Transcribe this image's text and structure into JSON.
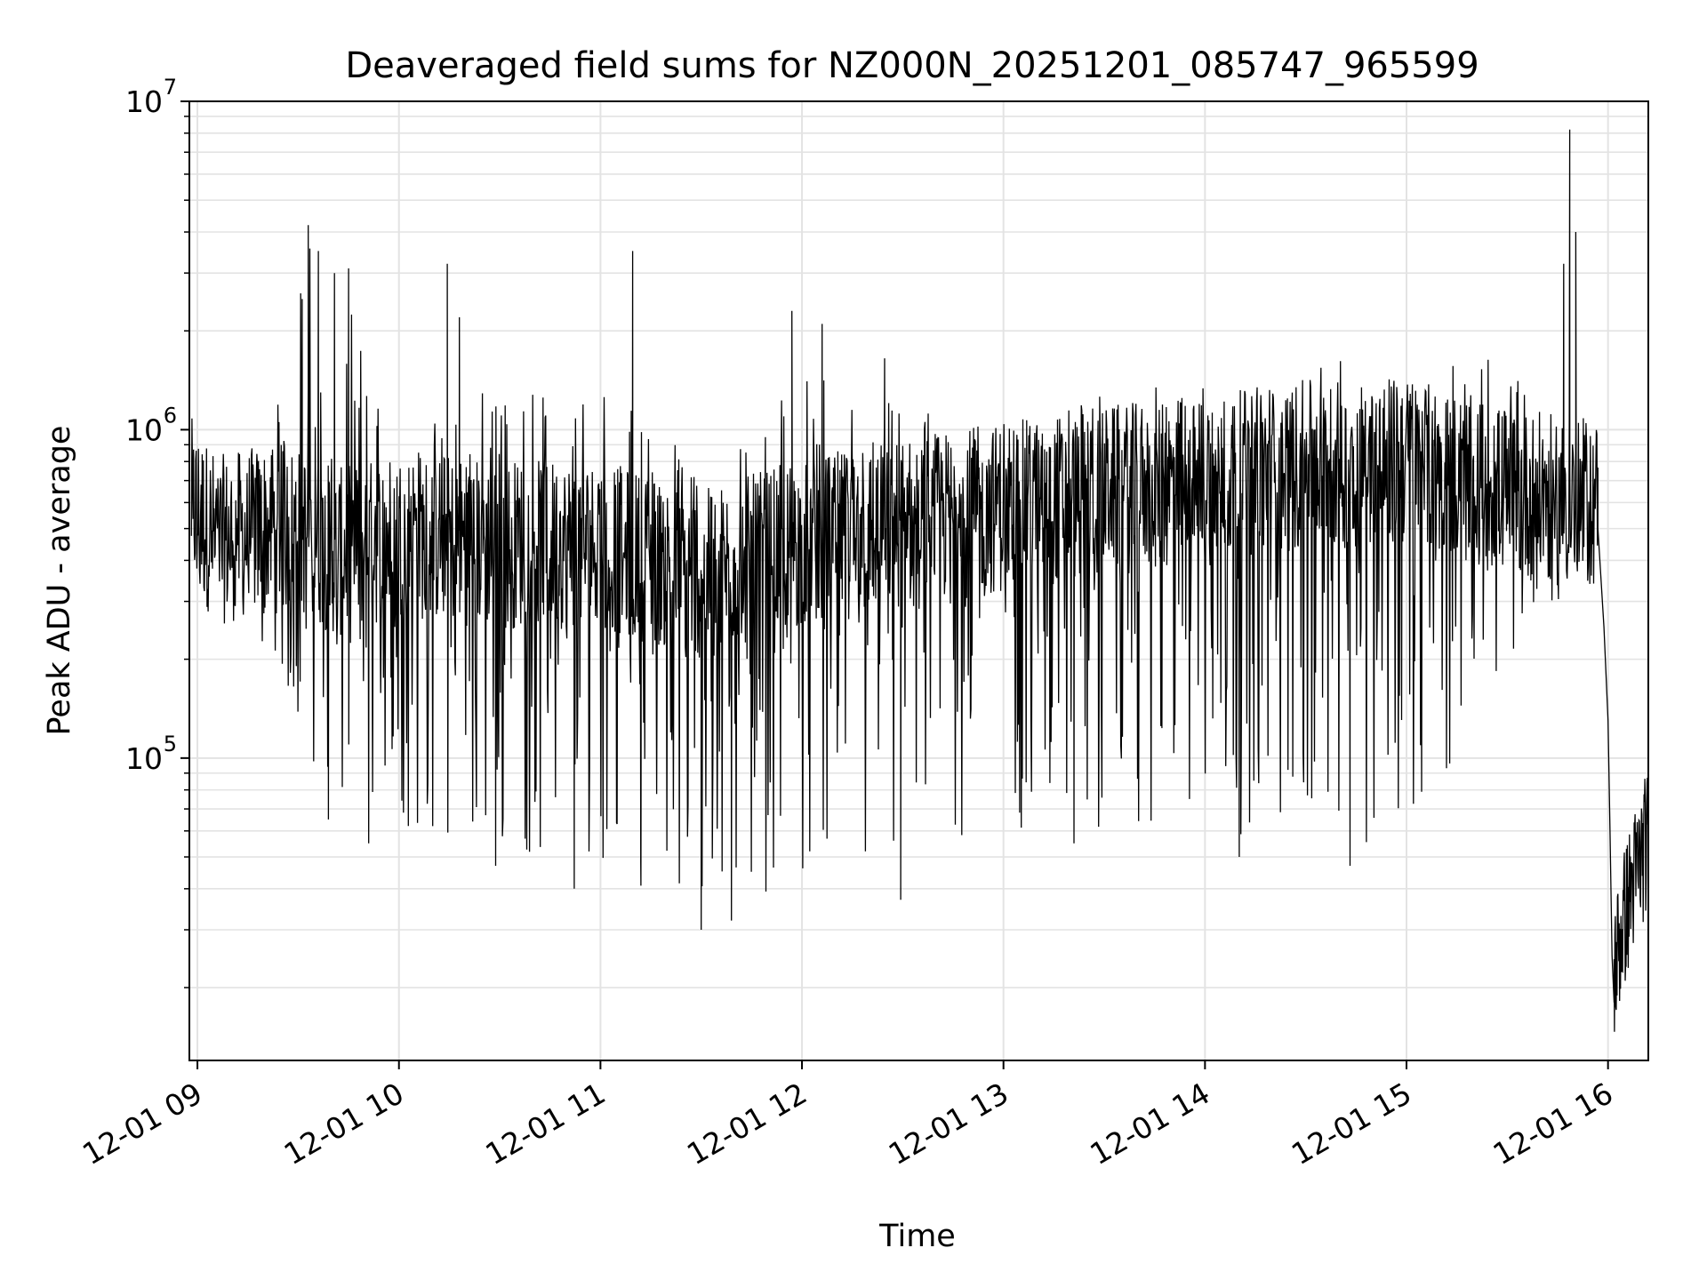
{
  "chart_data": {
    "type": "line",
    "title": "Deaveraged field sums for NZ000N_20251201_085747_965599",
    "xlabel": "Time",
    "ylabel": "Peak ADU - average",
    "yscale": "log",
    "xlim_hours": [
      8.96,
      16.2
    ],
    "ylim": [
      12000,
      10000000
    ],
    "grid": true,
    "line_color": "#000000",
    "grid_color": "#e3e3e3",
    "x_ticks": [
      {
        "label": "12-01 09",
        "hour": 9
      },
      {
        "label": "12-01 10",
        "hour": 10
      },
      {
        "label": "12-01 11",
        "hour": 11
      },
      {
        "label": "12-01 12",
        "hour": 12
      },
      {
        "label": "12-01 13",
        "hour": 13
      },
      {
        "label": "12-01 14",
        "hour": 14
      },
      {
        "label": "12-01 15",
        "hour": 15
      },
      {
        "label": "12-01 16",
        "hour": 16
      }
    ],
    "y_ticks": [
      {
        "base": "10",
        "exp": "5",
        "value": 100000
      },
      {
        "base": "10",
        "exp": "6",
        "value": 1000000
      },
      {
        "base": "10",
        "exp": "7",
        "value": 10000000
      }
    ],
    "series": [
      {
        "name": "field sums",
        "envelope": [
          {
            "hour": 8.97,
            "baseline": 600000,
            "low": 250000,
            "high": 1100000
          },
          {
            "hour": 9.1,
            "baseline": 460000,
            "low": 320000,
            "high": 600000
          },
          {
            "hour": 9.35,
            "baseline": 500000,
            "low": 200000,
            "high": 900000
          },
          {
            "hour": 9.5,
            "baseline": 500000,
            "low": 130000,
            "high": 4200000
          },
          {
            "hour": 9.7,
            "baseline": 420000,
            "low": 60000,
            "high": 3100000
          },
          {
            "hour": 10.0,
            "baseline": 480000,
            "low": 60000,
            "high": 900000
          },
          {
            "hour": 10.5,
            "baseline": 450000,
            "low": 50000,
            "high": 1500000
          },
          {
            "hour": 11.0,
            "baseline": 450000,
            "low": 50000,
            "high": 1500000
          },
          {
            "hour": 11.5,
            "baseline": 360000,
            "low": 30000,
            "high": 800000
          },
          {
            "hour": 12.0,
            "baseline": 450000,
            "low": 45000,
            "high": 1500000
          },
          {
            "hour": 12.5,
            "baseline": 520000,
            "low": 40000,
            "high": 1200000
          },
          {
            "hour": 13.0,
            "baseline": 580000,
            "low": 60000,
            "high": 1100000
          },
          {
            "hour": 13.5,
            "baseline": 650000,
            "low": 55000,
            "high": 1300000
          },
          {
            "hour": 14.0,
            "baseline": 700000,
            "low": 60000,
            "high": 1400000
          },
          {
            "hour": 14.5,
            "baseline": 780000,
            "low": 55000,
            "high": 1600000
          },
          {
            "hour": 15.0,
            "baseline": 800000,
            "low": 55000,
            "high": 1700000
          },
          {
            "hour": 15.5,
            "baseline": 650000,
            "low": 200000,
            "high": 1700000
          },
          {
            "hour": 15.8,
            "baseline": 600000,
            "low": 300000,
            "high": 1500000
          },
          {
            "hour": 15.95,
            "baseline": 600000,
            "low": 450000,
            "high": 1000000
          }
        ],
        "spikes": [
          {
            "hour": 9.55,
            "value": 4200000
          },
          {
            "hour": 9.6,
            "value": 3500000
          },
          {
            "hour": 9.68,
            "value": 3000000
          },
          {
            "hour": 9.75,
            "value": 3100000
          },
          {
            "hour": 9.52,
            "value": 2500000
          },
          {
            "hour": 10.24,
            "value": 3200000
          },
          {
            "hour": 10.3,
            "value": 2200000
          },
          {
            "hour": 11.16,
            "value": 3500000
          },
          {
            "hour": 11.95,
            "value": 2300000
          },
          {
            "hour": 12.1,
            "value": 2100000
          },
          {
            "hour": 12.41,
            "value": 1650000
          },
          {
            "hour": 15.78,
            "value": 3200000
          },
          {
            "hour": 15.81,
            "value": 8200000
          },
          {
            "hour": 15.84,
            "value": 4000000
          },
          {
            "hour": 9.65,
            "value": 65000
          },
          {
            "hour": 9.85,
            "value": 55000
          },
          {
            "hour": 10.48,
            "value": 47000
          },
          {
            "hour": 10.87,
            "value": 40000
          },
          {
            "hour": 11.2,
            "value": 48000
          },
          {
            "hour": 11.5,
            "value": 30000
          },
          {
            "hour": 11.65,
            "value": 32000
          },
          {
            "hour": 12.49,
            "value": 37000
          },
          {
            "hour": 13.35,
            "value": 55000
          },
          {
            "hour": 14.17,
            "value": 50000
          },
          {
            "hour": 14.72,
            "value": 47000
          }
        ],
        "tail": [
          {
            "hour": 15.95,
            "value": 500000
          },
          {
            "hour": 15.98,
            "value": 250000
          },
          {
            "hour": 16.0,
            "value": 130000
          },
          {
            "hour": 16.01,
            "value": 60000
          },
          {
            "hour": 16.02,
            "value": 25000
          },
          {
            "hour": 16.03,
            "value": 18000
          },
          {
            "hour": 16.1,
            "value": 30000
          },
          {
            "hour": 16.15,
            "value": 40000
          },
          {
            "hour": 16.2,
            "value": 60000
          }
        ]
      }
    ]
  }
}
